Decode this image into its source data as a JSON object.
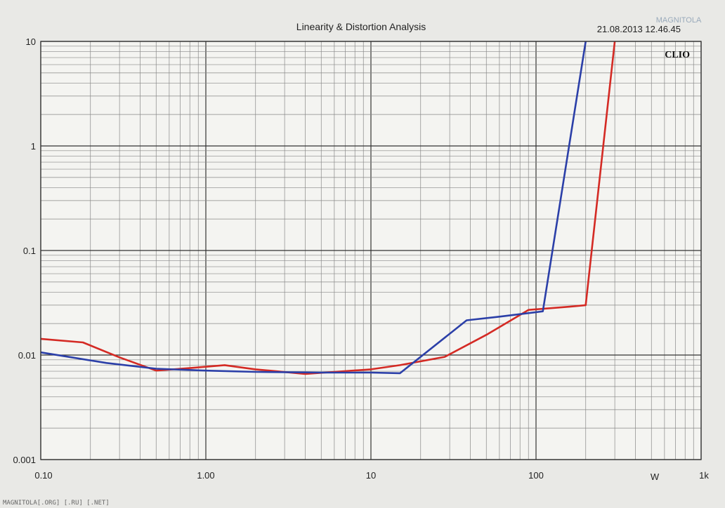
{
  "chart_data": {
    "type": "line",
    "title": "Linearity & Distortion Analysis",
    "timestamp": "21.08.2013 12.46.45",
    "brand": "CLIO",
    "xscale": "log",
    "yscale": "log",
    "xlim": [
      0.1,
      1000
    ],
    "ylim": [
      0.001,
      10
    ],
    "xlabel": "W",
    "grid": true,
    "x_ticks": [
      {
        "value": 0.1,
        "label": "0.10"
      },
      {
        "value": 1,
        "label": "1.00"
      },
      {
        "value": 10,
        "label": "10"
      },
      {
        "value": 100,
        "label": "100"
      },
      {
        "value": 1000,
        "label": "1k"
      }
    ],
    "y_ticks": [
      {
        "value": 10,
        "label": "10"
      },
      {
        "value": 1,
        "label": "1"
      },
      {
        "value": 0.1,
        "label": "0.1"
      },
      {
        "value": 0.01,
        "label": "0.01"
      },
      {
        "value": 0.001,
        "label": "0.001"
      }
    ],
    "series": [
      {
        "color": "#d42a24",
        "points": [
          [
            0.1,
            0.0143
          ],
          [
            0.18,
            0.0132
          ],
          [
            0.3,
            0.0095
          ],
          [
            0.5,
            0.0071
          ],
          [
            0.8,
            0.0075
          ],
          [
            1.3,
            0.008
          ],
          [
            2.0,
            0.0073
          ],
          [
            4.0,
            0.0066
          ],
          [
            6.0,
            0.0069
          ],
          [
            10,
            0.0073
          ],
          [
            15,
            0.008
          ],
          [
            28,
            0.0096
          ],
          [
            50,
            0.0156
          ],
          [
            90,
            0.027
          ],
          [
            160,
            0.029
          ],
          [
            200,
            0.03
          ],
          [
            300,
            10
          ]
        ]
      },
      {
        "color": "#2b3fa8",
        "points": [
          [
            0.1,
            0.0106
          ],
          [
            0.25,
            0.0084
          ],
          [
            0.5,
            0.0074
          ],
          [
            1.0,
            0.0071
          ],
          [
            2.0,
            0.0069
          ],
          [
            5.0,
            0.0068
          ],
          [
            10,
            0.0068
          ],
          [
            15,
            0.0067
          ],
          [
            38,
            0.0215
          ],
          [
            60,
            0.0233
          ],
          [
            110,
            0.0262
          ],
          [
            200,
            10
          ]
        ]
      }
    ]
  },
  "watermark": "MAGNITOLA[.ORG] [.RU] [.NET]",
  "corner_logo": "MAGNITOLA"
}
